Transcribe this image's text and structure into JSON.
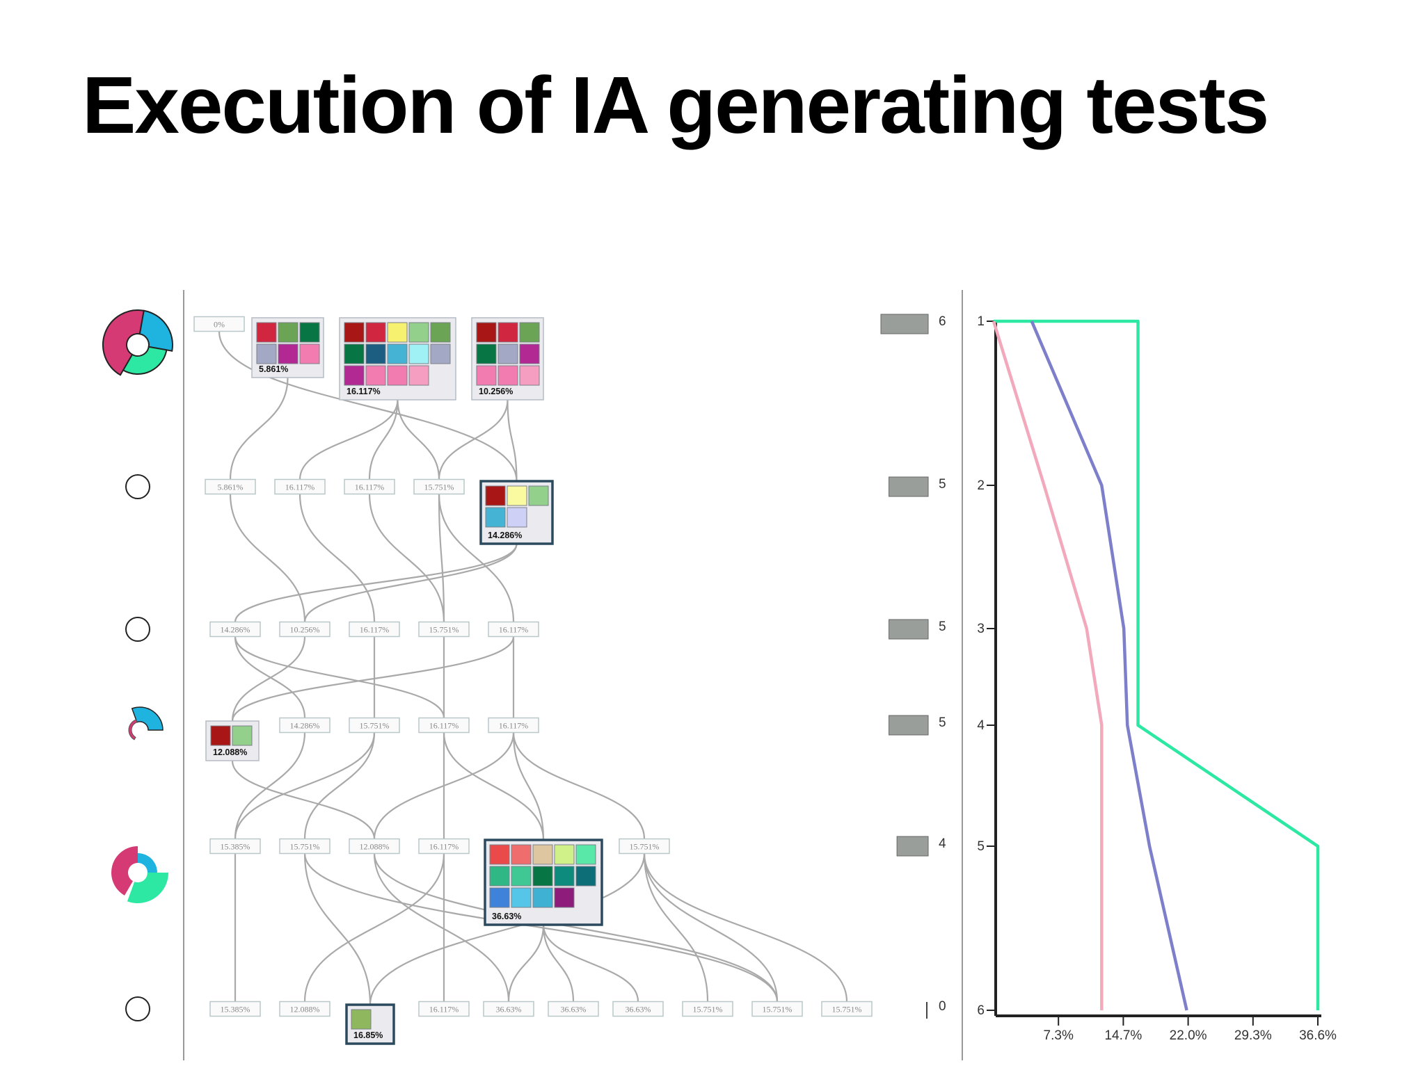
{
  "title": "Execution of IA generating tests",
  "colors": {
    "edge": "#a9a9a9",
    "tag_border": "#b9c7c9",
    "highlight_border": "#2c4a5e",
    "bar": "#999e9b",
    "line_green": "#2de8a3",
    "line_blue": "#7d7fcb",
    "line_pink": "#f2a9bc"
  },
  "rows": [
    {
      "cells": [
        {
          "kind": "tag",
          "label": "0%"
        },
        {
          "kind": "box",
          "label": "5.861%",
          "swatches": [
            "#d1263f",
            "#6aa454",
            "#087545",
            "#a3a8c5",
            "#b32993",
            "#f27bb0"
          ]
        },
        {
          "kind": "box",
          "label": "16.117%",
          "swatches": [
            "#a81616",
            "#d1263f",
            "#f7f170",
            "#92d08b",
            "#6aa454",
            "#087545",
            "#1b5e82",
            "#45b3d3",
            "#a0f1f5",
            "#a3a8c5",
            "#b32993",
            "#f27bb0",
            "#f27bb0",
            "#f59ec2"
          ]
        },
        {
          "kind": "box",
          "label": "10.256%",
          "swatches": [
            "#a81616",
            "#d1263f",
            "#6aa454",
            "#087545",
            "#a3a8c5",
            "#b32993",
            "#f27bb0",
            "#f27bb0",
            "#f59ec2"
          ]
        }
      ],
      "bar": {
        "value": "6",
        "level": 1.0
      }
    },
    {
      "cells": [
        {
          "kind": "tag",
          "label": "5.861%"
        },
        {
          "kind": "tag",
          "label": "16.117%"
        },
        {
          "kind": "tag",
          "label": "16.117%"
        },
        {
          "kind": "tag",
          "label": "15.751%"
        },
        {
          "kind": "box",
          "label": "14.286%",
          "highlight": true,
          "swatches": [
            "#a81616",
            "#fafaa0",
            "#92d08b",
            "#45b3d3",
            "#cfd0f5"
          ]
        }
      ],
      "bar": {
        "value": "5",
        "level": 0.83
      }
    },
    {
      "cells": [
        {
          "kind": "tag",
          "label": "14.286%"
        },
        {
          "kind": "tag",
          "label": "10.256%"
        },
        {
          "kind": "tag",
          "label": "16.117%"
        },
        {
          "kind": "tag",
          "label": "15.751%"
        },
        {
          "kind": "tag",
          "label": "16.117%"
        }
      ],
      "bar": {
        "value": "5",
        "level": 0.83
      }
    },
    {
      "cells": [
        {
          "kind": "box",
          "label": "12.088%",
          "swatches": [
            "#a81616",
            "#92d08b"
          ]
        },
        {
          "kind": "tag",
          "label": "14.286%"
        },
        {
          "kind": "tag",
          "label": "15.751%"
        },
        {
          "kind": "tag",
          "label": "16.117%"
        },
        {
          "kind": "tag",
          "label": "16.117%"
        }
      ],
      "bar": {
        "value": "5",
        "level": 0.83
      }
    },
    {
      "cells": [
        {
          "kind": "tag",
          "label": "15.385%"
        },
        {
          "kind": "tag",
          "label": "15.751%"
        },
        {
          "kind": "tag",
          "label": "12.088%"
        },
        {
          "kind": "tag",
          "label": "16.117%"
        },
        {
          "kind": "box",
          "label": "36.63%",
          "highlight": true,
          "swatches": [
            "#ea4a4a",
            "#ef6d6d",
            "#ddc6a0",
            "#d0f08a",
            "#5ae8a8",
            "#2fb886",
            "#3fc794",
            "#087545",
            "#0d8b7c",
            "#0e6e78",
            "#3e82d9",
            "#55c5e8",
            "#3fb1d3",
            "#8e1c7a"
          ]
        },
        {
          "kind": "tag",
          "label": "15.751%"
        }
      ],
      "bar": {
        "value": "4",
        "level": 0.66
      }
    },
    {
      "cells": [
        {
          "kind": "tag",
          "label": "15.385%"
        },
        {
          "kind": "tag",
          "label": "12.088%"
        },
        {
          "kind": "box",
          "label": "16.85%",
          "highlight": true,
          "swatches": [
            "#8fb75e"
          ]
        },
        {
          "kind": "tag",
          "label": "16.117%"
        },
        {
          "kind": "tag",
          "label": "36.63%"
        },
        {
          "kind": "tag",
          "label": "36.63%"
        },
        {
          "kind": "tag",
          "label": "36.63%"
        },
        {
          "kind": "tag",
          "label": "15.751%"
        },
        {
          "kind": "tag",
          "label": "15.751%"
        },
        {
          "kind": "tag",
          "label": "15.751%"
        }
      ],
      "bar": {
        "value": "0",
        "level": 0.0
      }
    }
  ],
  "row_glyphs": [
    {
      "name": "donut-full"
    },
    {
      "name": "ring-empty"
    },
    {
      "name": "ring-empty"
    },
    {
      "name": "donut-partial-small"
    },
    {
      "name": "donut-partial-large"
    },
    {
      "name": "ring-empty"
    }
  ],
  "chart_data": {
    "type": "line",
    "y_ticks": [
      "1",
      "2",
      "3",
      "4",
      "5",
      "6"
    ],
    "x_ticks": [
      "7.3%",
      "14.7%",
      "22.0%",
      "29.3%",
      "36.6%"
    ],
    "xlim": [
      0,
      36.6
    ],
    "ylim": [
      1,
      6
    ],
    "series": [
      {
        "color": "#2de8a3",
        "points": [
          [
            0,
            1
          ],
          [
            16.3,
            1
          ],
          [
            16.3,
            4
          ],
          [
            36.6,
            5
          ],
          [
            36.6,
            6
          ]
        ]
      },
      {
        "color": "#7d7fcb",
        "points": [
          [
            4.3,
            1
          ],
          [
            12.2,
            2
          ],
          [
            14.7,
            3
          ],
          [
            15.1,
            4
          ],
          [
            17.6,
            5
          ],
          [
            21.8,
            6
          ]
        ]
      },
      {
        "color": "#f2a9bc",
        "points": [
          [
            0,
            1
          ],
          [
            5.7,
            2
          ],
          [
            10.5,
            3
          ],
          [
            12.2,
            4
          ],
          [
            12.2,
            5
          ],
          [
            12.2,
            6
          ]
        ]
      }
    ]
  }
}
